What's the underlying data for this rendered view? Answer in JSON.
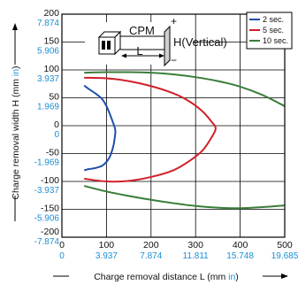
{
  "chart_data": {
    "type": "line",
    "xlabel": "Charge removal distance L (mm in)",
    "xlabel_parts": [
      "Charge removal distance L (mm ",
      "in",
      ")"
    ],
    "ylabel": "Charge removal width H (mm in)",
    "ylabel_parts": [
      "Charge removal width H (mm ",
      "in",
      ")"
    ],
    "xlim": [
      0,
      500
    ],
    "ylim": [
      -200,
      200
    ],
    "x_ticks": [
      {
        "mm": "0",
        "in": "0",
        "v": 0
      },
      {
        "mm": "100",
        "in": "3.937",
        "v": 100
      },
      {
        "mm": "200",
        "in": "7.874",
        "v": 200
      },
      {
        "mm": "300",
        "in": "11.811",
        "v": 300
      },
      {
        "mm": "400",
        "in": "15.748",
        "v": 400
      },
      {
        "mm": "500",
        "in": "19.685",
        "v": 500
      }
    ],
    "y_ticks": [
      {
        "mm": "200",
        "in": "7.874",
        "v": 200
      },
      {
        "mm": "150",
        "in": "5.906",
        "v": 150
      },
      {
        "mm": "100",
        "in": "3.937",
        "v": 100
      },
      {
        "mm": "50",
        "in": "1.969",
        "v": 50
      },
      {
        "mm": "0",
        "in": "0",
        "v": 0
      },
      {
        "mm": "-50",
        "in": "-1.969",
        "v": -50
      },
      {
        "mm": "-100",
        "in": "-3.937",
        "v": -100
      },
      {
        "mm": "-150",
        "in": "-5.906",
        "v": -150
      },
      {
        "mm": "-200",
        "in": "-7.874",
        "v": -200
      }
    ],
    "grid": true,
    "legend_position": "top-right",
    "series": [
      {
        "name": "2 sec.",
        "color": "#1f4fa8",
        "x": [
          50,
          60,
          75,
          90,
          100,
          108,
          115,
          118,
          120,
          118,
          115,
          108,
          100,
          90,
          75,
          60,
          50
        ],
        "y": [
          72,
          66,
          58,
          48,
          35,
          20,
          5,
          -2,
          -10,
          -25,
          -38,
          -55,
          -65,
          -72,
          -76,
          -78,
          -80
        ]
      },
      {
        "name": "5 sec.",
        "color": "#d0202a",
        "x": [
          50,
          100,
          150,
          200,
          250,
          285,
          315,
          335,
          345,
          335,
          315,
          285,
          250,
          200,
          150,
          100,
          50
        ],
        "y": [
          86,
          85,
          80,
          71,
          58,
          44,
          26,
          8,
          -5,
          -22,
          -45,
          -64,
          -80,
          -92,
          -99,
          -100,
          -95
        ]
      },
      {
        "name": "10 sec.",
        "color": "#3a7d3a",
        "x_upper": [
          50,
          100,
          150,
          200,
          250,
          300,
          350,
          400,
          450,
          500
        ],
        "y_upper": [
          95,
          96,
          96,
          95,
          92,
          87,
          80,
          70,
          55,
          35
        ],
        "x_lower": [
          50,
          100,
          150,
          200,
          250,
          300,
          350,
          400,
          450,
          500
        ],
        "y_lower": [
          -108,
          -118,
          -126,
          -133,
          -139,
          -144,
          -147,
          -148,
          -146,
          -143
        ]
      }
    ],
    "diagram": {
      "cpm_label": "CPM",
      "h_label": "H(Vertical)",
      "l_label": "L",
      "plus_sign": "+",
      "minus_sign": "−"
    }
  }
}
